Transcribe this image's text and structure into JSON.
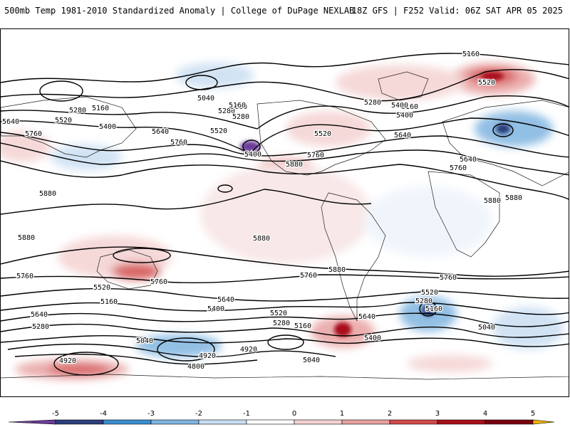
{
  "header": {
    "left_title": "500mb Temp 1981-2010 Standardized Anomaly | College of DuPage NEXLAB",
    "right_title": "18Z GFS | F252 Valid: 06Z SAT APR 05 2025"
  },
  "map": {
    "projection": "world equirectangular",
    "contour_labels": [
      {
        "id": "l1",
        "text": "5160"
      },
      {
        "id": "l2",
        "text": "5040"
      },
      {
        "id": "l3",
        "text": "5160"
      },
      {
        "id": "l4",
        "text": "5280"
      },
      {
        "id": "l5",
        "text": "5280"
      },
      {
        "id": "l6",
        "text": "5160"
      },
      {
        "id": "l7",
        "text": "5280"
      },
      {
        "id": "l8",
        "text": "5400"
      },
      {
        "id": "l9",
        "text": "5520"
      },
      {
        "id": "l10",
        "text": "5640"
      },
      {
        "id": "l11",
        "text": "5760"
      },
      {
        "id": "l12",
        "text": "5400"
      },
      {
        "id": "l13",
        "text": "5520"
      },
      {
        "id": "l14",
        "text": "5640"
      },
      {
        "id": "l15",
        "text": "5760"
      },
      {
        "id": "l16",
        "text": "5400"
      },
      {
        "id": "l17",
        "text": "5520"
      },
      {
        "id": "l18",
        "text": "5760"
      },
      {
        "id": "l19",
        "text": "5880"
      },
      {
        "id": "l20",
        "text": "5280"
      },
      {
        "id": "l21",
        "text": "5160"
      },
      {
        "id": "l22",
        "text": "5400"
      },
      {
        "id": "l23",
        "text": "5640"
      },
      {
        "id": "l24",
        "text": "5160"
      },
      {
        "id": "l25",
        "text": "5520"
      },
      {
        "id": "l26",
        "text": "5640"
      },
      {
        "id": "l27",
        "text": "5760"
      },
      {
        "id": "l28",
        "text": "5880"
      },
      {
        "id": "l29",
        "text": "5880"
      },
      {
        "id": "l30",
        "text": "5880"
      },
      {
        "id": "l31",
        "text": "5880"
      },
      {
        "id": "l32",
        "text": "5880"
      },
      {
        "id": "l33",
        "text": "5760"
      },
      {
        "id": "l34",
        "text": "5760"
      },
      {
        "id": "l35",
        "text": "5760"
      },
      {
        "id": "l36",
        "text": "5880"
      },
      {
        "id": "l37",
        "text": "5760"
      },
      {
        "id": "l38",
        "text": "5520"
      },
      {
        "id": "l39",
        "text": "5160"
      },
      {
        "id": "l40",
        "text": "5640"
      },
      {
        "id": "l41",
        "text": "5280"
      },
      {
        "id": "l42",
        "text": "5640"
      },
      {
        "id": "l43",
        "text": "5400"
      },
      {
        "id": "l44",
        "text": "5520"
      },
      {
        "id": "l45",
        "text": "5280"
      },
      {
        "id": "l46",
        "text": "5160"
      },
      {
        "id": "l47",
        "text": "5040"
      },
      {
        "id": "l48",
        "text": "4920"
      },
      {
        "id": "l49",
        "text": "4920"
      },
      {
        "id": "l50",
        "text": "4920"
      },
      {
        "id": "l51",
        "text": "4800"
      },
      {
        "id": "l52",
        "text": "5040"
      },
      {
        "id": "l53",
        "text": "5640"
      },
      {
        "id": "l54",
        "text": "5400"
      },
      {
        "id": "l55",
        "text": "5520"
      },
      {
        "id": "l56",
        "text": "5280"
      },
      {
        "id": "l57",
        "text": "5160"
      },
      {
        "id": "l58",
        "text": "5040"
      }
    ]
  },
  "colorbar": {
    "ticks": [
      "-5",
      "-4",
      "-3",
      "-2",
      "-1",
      "0",
      "1",
      "2",
      "3",
      "4",
      "5"
    ],
    "colors": [
      "#6a3d9a",
      "#2c3e7a",
      "#3a8fd0",
      "#7fb4e0",
      "#c9def2",
      "#ffffff",
      "#f4d2d2",
      "#e8a0a0",
      "#d24a4a",
      "#a80f1a",
      "#7a0010",
      "#f2b400"
    ]
  }
}
